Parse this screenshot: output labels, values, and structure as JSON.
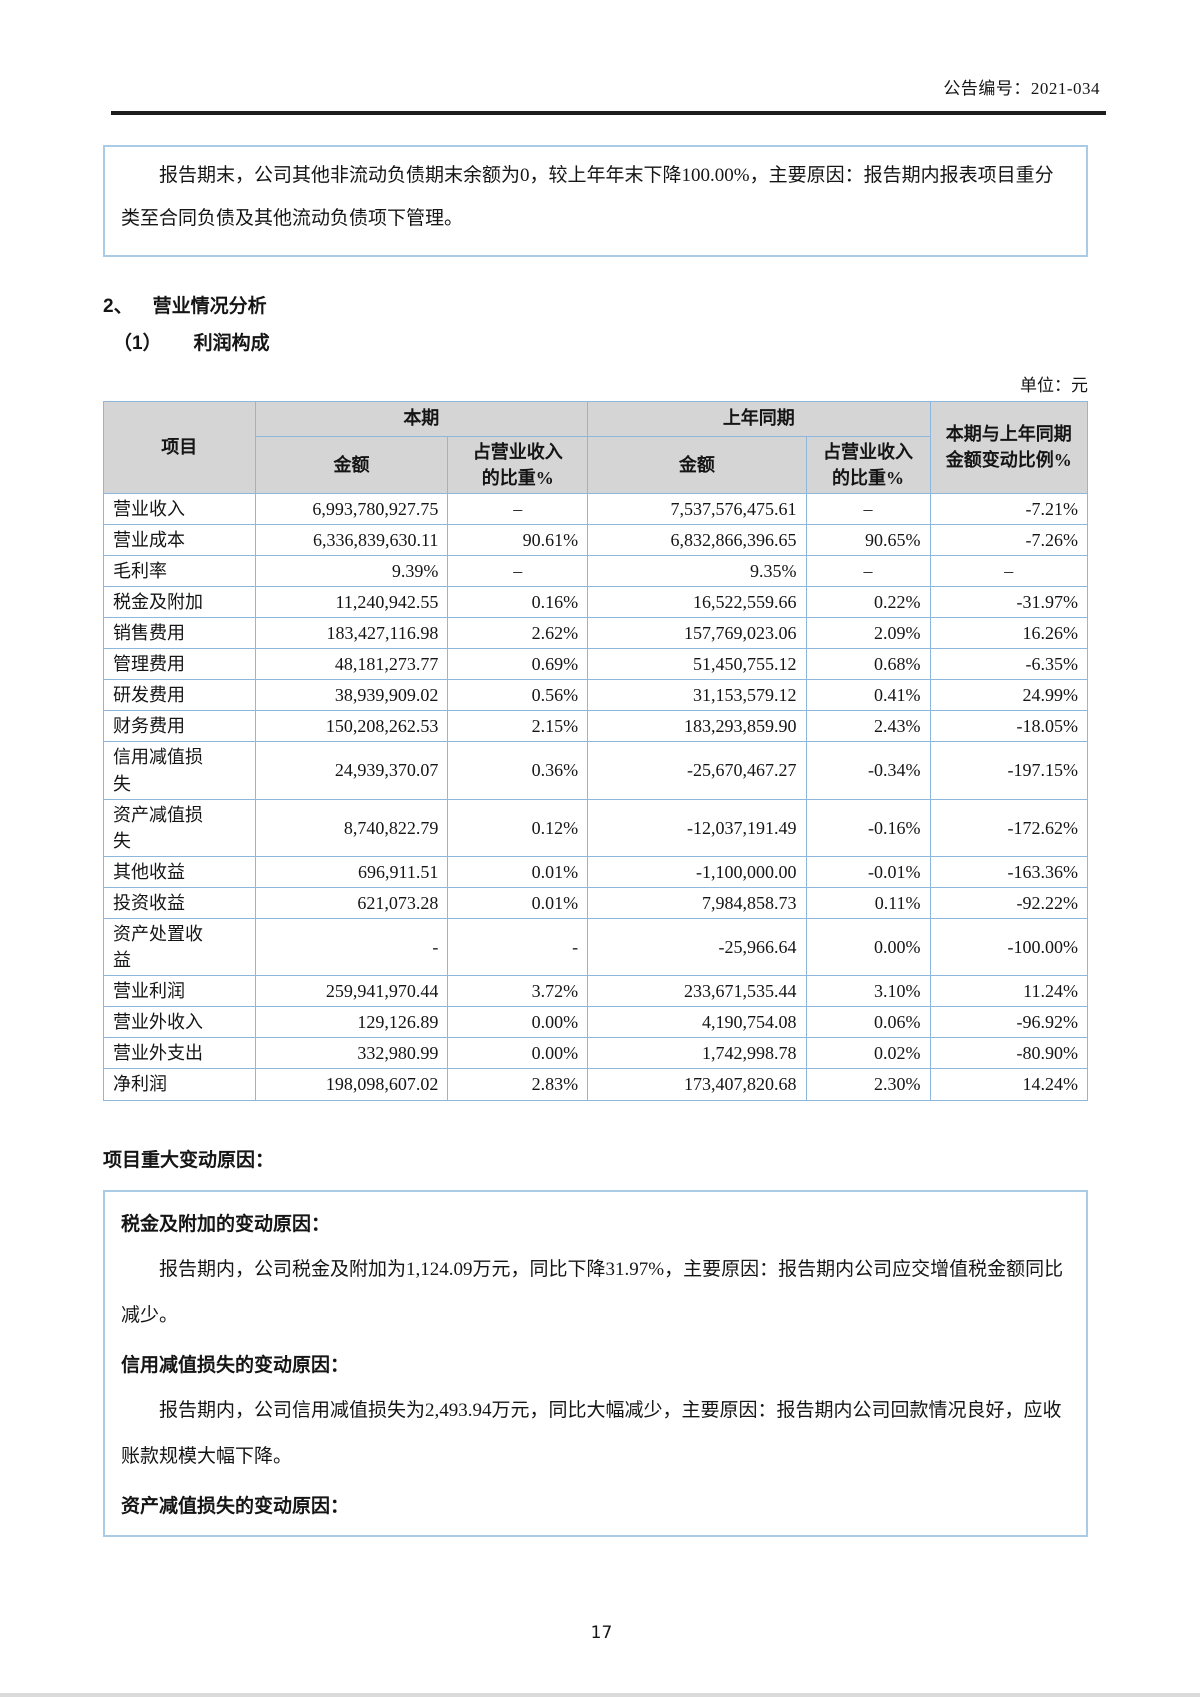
{
  "page": {
    "announcement_no": "公告编号：2021-034",
    "page_number": "17"
  },
  "intro_box": {
    "text": "报告期末，公司其他非流动负债期末余额为0，较上年年末下降100.00%，主要原因：报告期内报表项目重分类至合同负债及其他流动负债项下管理。"
  },
  "section": {
    "number": "2、",
    "title": "营业情况分析"
  },
  "subsection": {
    "number": "（1）",
    "title": "利润构成"
  },
  "unit_label": "单位：元",
  "table": {
    "headers": {
      "item": "项目",
      "current": "本期",
      "prior": "上年同期",
      "amount": "金额",
      "revenue_ratio": "占营业收入\n的比重%",
      "change": "本期与上年同期\n金额变动比例%"
    },
    "rows": [
      {
        "item": "营业收入",
        "cur_amount": "6,993,780,927.75",
        "cur_ratio": "–",
        "prior_amount": "7,537,576,475.61",
        "prior_ratio": "–",
        "change": "-7.21%"
      },
      {
        "item": "营业成本",
        "cur_amount": "6,336,839,630.11",
        "cur_ratio": "90.61%",
        "prior_amount": "6,832,866,396.65",
        "prior_ratio": "90.65%",
        "change": "-7.26%"
      },
      {
        "item": "毛利率",
        "cur_amount": "9.39%",
        "cur_ratio": "–",
        "prior_amount": "9.35%",
        "prior_ratio": "–",
        "change": "–"
      },
      {
        "item": "税金及附加",
        "cur_amount": "11,240,942.55",
        "cur_ratio": "0.16%",
        "prior_amount": "16,522,559.66",
        "prior_ratio": "0.22%",
        "change": "-31.97%"
      },
      {
        "item": "销售费用",
        "cur_amount": "183,427,116.98",
        "cur_ratio": "2.62%",
        "prior_amount": "157,769,023.06",
        "prior_ratio": "2.09%",
        "change": "16.26%"
      },
      {
        "item": "管理费用",
        "cur_amount": "48,181,273.77",
        "cur_ratio": "0.69%",
        "prior_amount": "51,450,755.12",
        "prior_ratio": "0.68%",
        "change": "-6.35%"
      },
      {
        "item": "研发费用",
        "cur_amount": "38,939,909.02",
        "cur_ratio": "0.56%",
        "prior_amount": "31,153,579.12",
        "prior_ratio": "0.41%",
        "change": "24.99%"
      },
      {
        "item": "财务费用",
        "cur_amount": "150,208,262.53",
        "cur_ratio": "2.15%",
        "prior_amount": "183,293,859.90",
        "prior_ratio": "2.43%",
        "change": "-18.05%"
      },
      {
        "item": "信用减值损\n失",
        "cur_amount": "24,939,370.07",
        "cur_ratio": "0.36%",
        "prior_amount": "-25,670,467.27",
        "prior_ratio": "-0.34%",
        "change": "-197.15%"
      },
      {
        "item": "资产减值损\n失",
        "cur_amount": "8,740,822.79",
        "cur_ratio": "0.12%",
        "prior_amount": "-12,037,191.49",
        "prior_ratio": "-0.16%",
        "change": "-172.62%"
      },
      {
        "item": "其他收益",
        "cur_amount": "696,911.51",
        "cur_ratio": "0.01%",
        "prior_amount": "-1,100,000.00",
        "prior_ratio": "-0.01%",
        "change": "-163.36%"
      },
      {
        "item": "投资收益",
        "cur_amount": "621,073.28",
        "cur_ratio": "0.01%",
        "prior_amount": "7,984,858.73",
        "prior_ratio": "0.11%",
        "change": "-92.22%"
      },
      {
        "item": "资产处置收\n益",
        "cur_amount": "-",
        "cur_ratio": "-",
        "prior_amount": "-25,966.64",
        "prior_ratio": "0.00%",
        "change": "-100.00%"
      },
      {
        "item": "营业利润",
        "cur_amount": "259,941,970.44",
        "cur_ratio": "3.72%",
        "prior_amount": "233,671,535.44",
        "prior_ratio": "3.10%",
        "change": "11.24%"
      },
      {
        "item": "营业外收入",
        "cur_amount": "129,126.89",
        "cur_ratio": "0.00%",
        "prior_amount": "4,190,754.08",
        "prior_ratio": "0.06%",
        "change": "-96.92%"
      },
      {
        "item": "营业外支出",
        "cur_amount": "332,980.99",
        "cur_ratio": "0.00%",
        "prior_amount": "1,742,998.78",
        "prior_ratio": "0.02%",
        "change": "-80.90%"
      },
      {
        "item": "净利润",
        "cur_amount": "198,098,607.02",
        "cur_ratio": "2.83%",
        "prior_amount": "173,407,820.68",
        "prior_ratio": "2.30%",
        "change": "14.24%"
      }
    ]
  },
  "reasons": {
    "title": "项目重大变动原因：",
    "items": [
      {
        "heading": "税金及附加的变动原因：",
        "text": "报告期内，公司税金及附加为1,124.09万元，同比下降31.97%，主要原因：报告期内公司应交增值税金额同比减少。"
      },
      {
        "heading": "信用减值损失的变动原因：",
        "text": "报告期内，公司信用减值损失为2,493.94万元，同比大幅减少，主要原因：报告期内公司回款情况良好，应收账款规模大幅下降。"
      },
      {
        "heading": "资产减值损失的变动原因：",
        "text": ""
      }
    ]
  },
  "colors": {
    "table_border": "#8fb7db",
    "box_border": "#a9cbe6",
    "header_fill": "#d5d5d5",
    "rule": "#1d1d1d"
  }
}
